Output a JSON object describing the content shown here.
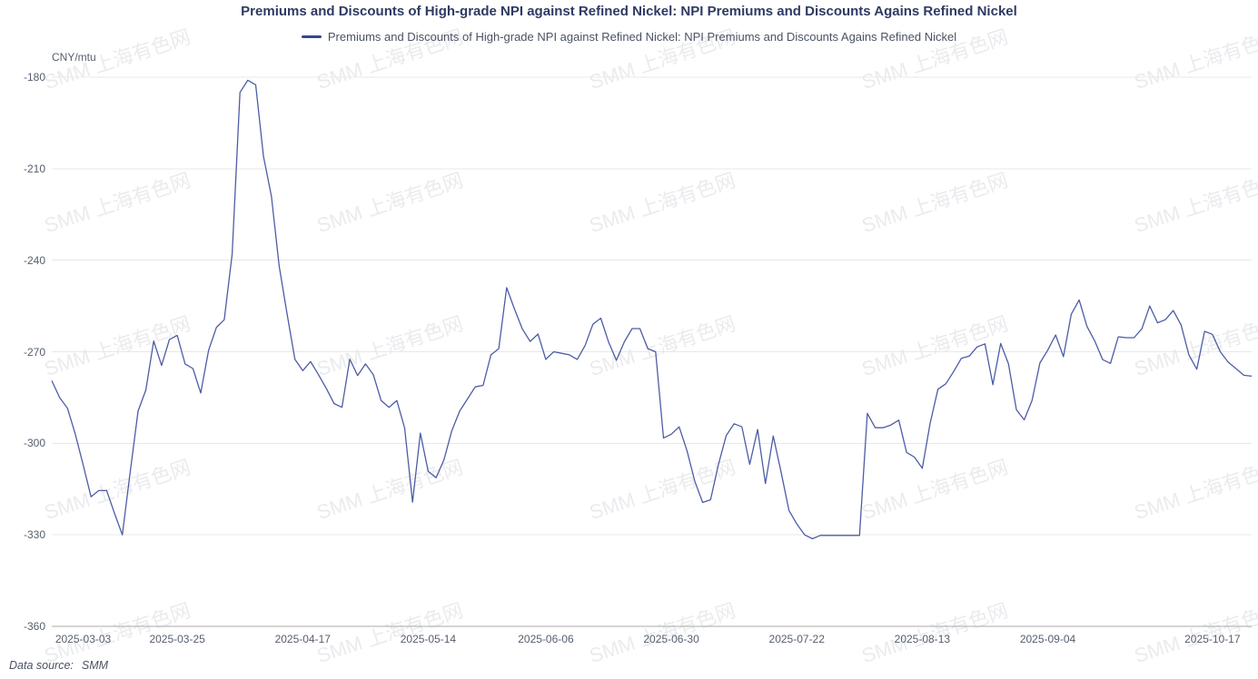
{
  "title": "Premiums and Discounts of High-grade NPI against Refined Nickel: NPI Premiums and Discounts Agains Refined Nickel",
  "legend": {
    "label": "Premiums and Discounts of High-grade NPI against Refined Nickel: NPI Premiums and Discounts Agains Refined Nickel"
  },
  "y_axis": {
    "unit": "CNY/mtu",
    "tick_labels": [
      "-180",
      "-210",
      "-240",
      "-270",
      "-300",
      "-330",
      "-360"
    ]
  },
  "x_axis": {
    "tick_labels": [
      "2025-03-03",
      "2025-03-25",
      "2025-04-17",
      "2025-05-14",
      "2025-06-06",
      "2025-06-30",
      "2025-07-22",
      "2025-08-13",
      "2025-09-04",
      "2025-10-17"
    ]
  },
  "footer": {
    "label": "Data source:",
    "value": "SMM"
  },
  "watermark": {
    "text": "SMM 上海有色网"
  },
  "colors": {
    "line": "#4d5ca5",
    "legend_marker": "#39458c",
    "title_text": "#2e3a62",
    "legend_text": "#4a5263",
    "axis_text": "#555e6e",
    "grid_line": "#e8e8e8",
    "axis_line": "#aaaaaa",
    "footer_text": "#4a5263"
  },
  "chart_data": {
    "type": "line",
    "title": "Premiums and Discounts of High-grade NPI against Refined Nickel: NPI Premiums and Discounts Agains Refined Nickel",
    "ylabel": "CNY/mtu",
    "ylim": [
      -360,
      -180
    ],
    "y_tick_step": 30,
    "grid": "horizontal-only",
    "legend_position": "top-center",
    "x_start": "2025-03-03",
    "x_end": "2025-10-17",
    "x_tick_labels": [
      "2025-03-03",
      "2025-03-25",
      "2025-04-17",
      "2025-05-14",
      "2025-06-06",
      "2025-06-30",
      "2025-07-22",
      "2025-08-13",
      "2025-09-04",
      "2025-10-17"
    ],
    "x_tick_indices": [
      4,
      16,
      32,
      48,
      63,
      79,
      95,
      111,
      127,
      148
    ],
    "series": [
      {
        "name": "Premiums and Discounts of High-grade NPI against Refined Nickel: NPI Premiums and Discounts Agains Refined Nickel",
        "values": [
          -279.5,
          -285,
          -288.5,
          -297,
          -307,
          -317.5,
          -315.5,
          -315.5,
          -323,
          -330,
          -309.5,
          -289.5,
          -282.5,
          -266.5,
          -274.5,
          -266,
          -264.6,
          -274,
          -275.5,
          -283.5,
          -269.5,
          -262,
          -259.5,
          -238,
          -185,
          -181,
          -182.5,
          -206,
          -219,
          -242,
          -257.5,
          -272.5,
          -276.2,
          -273.2,
          -277.5,
          -282,
          -287,
          -288.2,
          -272.4,
          -277.8,
          -274,
          -277.5,
          -286,
          -288.2,
          -286,
          -295,
          -319.3,
          -296.7,
          -309.2,
          -311.3,
          -305.5,
          -296,
          -289.5,
          -285.5,
          -281.5,
          -281,
          -271,
          -269,
          -249,
          -256,
          -262.5,
          -266.6,
          -264.2,
          -272.5,
          -270,
          -270.5,
          -271,
          -272.5,
          -268,
          -261,
          -259,
          -266.8,
          -272.8,
          -266.8,
          -262.4,
          -262.4,
          -269,
          -270,
          -298.3,
          -297,
          -294.6,
          -302.5,
          -312.5,
          -319.4,
          -318.5,
          -307,
          -297.5,
          -293.6,
          -294.6,
          -306.9,
          -295.5,
          -313.2,
          -297.6,
          -309.5,
          -322,
          -326.4,
          -330,
          -331.3,
          -330.2,
          -330.2,
          -330.2,
          -330.2,
          -330.2,
          -330.2,
          -290.2,
          -294.9,
          -294.9,
          -294,
          -292.4,
          -303,
          -304.5,
          -308.2,
          -293.5,
          -282.3,
          -280.5,
          -276.5,
          -272.1,
          -271.4,
          -268.4,
          -267.4,
          -280.8,
          -267.3,
          -274,
          -289,
          -292.3,
          -286,
          -273.7,
          -269.5,
          -264.5,
          -271.6,
          -257.7,
          -253,
          -261.7,
          -266.5,
          -272.6,
          -273.8,
          -265.1,
          -265.4,
          -265.4,
          -262.5,
          -255,
          -260.5,
          -259.5,
          -256.5,
          -261.2,
          -271,
          -275.7,
          -263.3,
          -264.3,
          -270,
          -273.4,
          -275.5,
          -277.7,
          -278
        ]
      }
    ]
  }
}
